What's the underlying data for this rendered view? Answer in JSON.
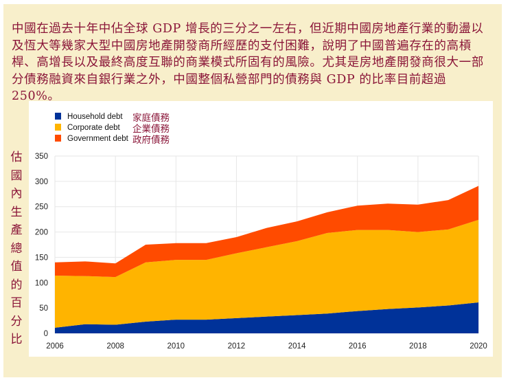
{
  "paragraph": "中國在過去十年中佔全球 GDP 增長的三分之一左右，但近期中國房地產行業的動盪以及恆大等幾家大型中國房地產開發商所經歷的支付困難，說明了中國普遍存在的高槓桿、高增長以及最終高度互聯的商業模式所固有的風險。尤其是房地產開發商很大一部分債務融資來自銀行業之外，中國整個私營部門的債務與 GDP 的比率目前超過 250%。",
  "chart_data": {
    "type": "area",
    "stacked": true,
    "title": "",
    "xlabel": "",
    "ylabel": "估國內生產總值的百分比",
    "x": [
      2006,
      2007,
      2008,
      2009,
      2010,
      2011,
      2012,
      2013,
      2014,
      2015,
      2016,
      2017,
      2018,
      2019,
      2020
    ],
    "xticks": [
      "2006",
      "2008",
      "2010",
      "2012",
      "2014",
      "2016",
      "2018",
      "2020"
    ],
    "yticks": [
      "0",
      "50",
      "100",
      "150",
      "200",
      "250",
      "300",
      "350"
    ],
    "xlim": [
      2006,
      2020
    ],
    "ylim": [
      0,
      350
    ],
    "grid": true,
    "legend_position": "top-left",
    "series": [
      {
        "name": "Household debt",
        "name_zh": "家庭債務",
        "color": "#003299",
        "values": [
          11,
          18,
          17,
          23,
          27,
          27,
          30,
          33,
          36,
          39,
          44,
          48,
          51,
          55,
          61
        ]
      },
      {
        "name": "Corporate debt",
        "name_zh": "企業債務",
        "color": "#ffb400",
        "values": [
          103,
          95,
          94,
          117,
          118,
          118,
          128,
          137,
          146,
          159,
          160,
          156,
          149,
          150,
          163
        ]
      },
      {
        "name": "Government debt",
        "name_zh": "政府債務",
        "color": "#ff4b00",
        "values": [
          26,
          29,
          27,
          35,
          33,
          33,
          32,
          38,
          39,
          41,
          48,
          52,
          54,
          58,
          67
        ]
      }
    ]
  }
}
